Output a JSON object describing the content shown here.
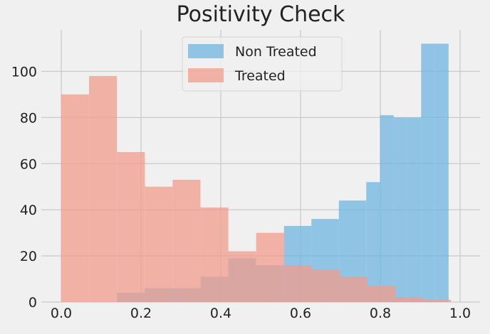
{
  "chart_data": {
    "type": "histogram",
    "title": "Positivity Check",
    "xlabel": "",
    "ylabel": "",
    "xlim": [
      -0.05,
      1.05
    ],
    "ylim": [
      0,
      118
    ],
    "xticks": [
      0.0,
      0.2,
      0.4,
      0.6,
      0.8,
      1.0
    ],
    "xtick_labels": [
      "0.0",
      "0.2",
      "0.4",
      "0.6",
      "0.8",
      "1.0"
    ],
    "yticks": [
      0,
      20,
      40,
      60,
      80,
      100
    ],
    "ytick_labels": [
      "0",
      "20",
      "40",
      "60",
      "80",
      "100"
    ],
    "grid": true,
    "legend_position": "upper center",
    "series": [
      {
        "name": "Non Treated",
        "color": "#6fb6e0",
        "opacity": 0.75,
        "bin_edges": [
          0.0,
          0.0698,
          0.1396,
          0.2094,
          0.2792,
          0.349,
          0.4188,
          0.4886,
          0.5584,
          0.5928,
          0.6272,
          0.6616,
          0.696,
          0.7304,
          0.7648,
          0.7992,
          0.8336,
          0.868,
          0.9024,
          0.9368,
          0.9712,
          0.9912
        ],
        "counts": [
          0,
          0,
          4,
          6,
          6,
          11,
          19,
          16,
          33,
          33,
          36,
          36,
          44,
          44,
          52,
          81,
          80,
          80,
          112,
          112,
          0
        ]
      },
      {
        "name": "Treated",
        "color": "#f19c8c",
        "opacity": 0.75,
        "bin_edges": [
          0.0,
          0.0698,
          0.1396,
          0.2094,
          0.2792,
          0.349,
          0.4188,
          0.4886,
          0.5584,
          0.6282,
          0.698,
          0.7678,
          0.8376,
          0.9074,
          0.9772
        ],
        "counts": [
          90,
          98,
          65,
          50,
          53,
          41,
          22,
          30,
          16,
          14,
          11,
          7,
          2,
          1
        ]
      }
    ]
  },
  "legend": {
    "items": [
      {
        "label": "Non Treated",
        "color": "#6fb6e0"
      },
      {
        "label": "Treated",
        "color": "#f19c8c"
      }
    ]
  }
}
